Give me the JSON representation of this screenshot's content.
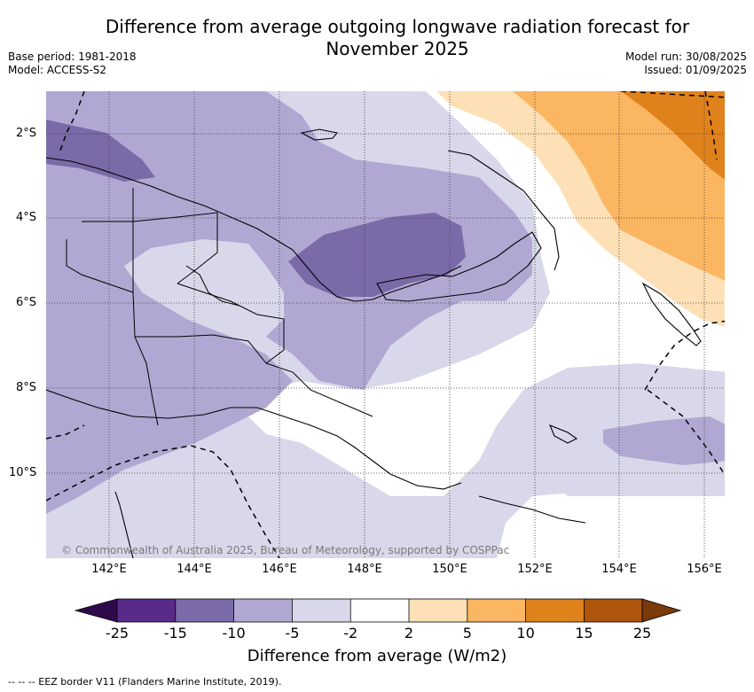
{
  "title_line1": "Difference from average outgoing longwave radiation forecast for",
  "title_line2": "November 2025",
  "base_period": "Base period: 1981-2018",
  "model": "Model: ACCESS-S2",
  "model_run": "Model run: 30/08/2025",
  "issued": "Issued: 01/09/2025",
  "lat_labels": [
    "2°S",
    "4°S",
    "6°S",
    "8°S",
    "10°S"
  ],
  "lon_labels": [
    "142°E",
    "144°E",
    "146°E",
    "148°E",
    "150°E",
    "152°E",
    "154°E",
    "156°E"
  ],
  "copyright": "© Commonwealth of Australia 2025, Bureau of Meteorology, supported by COSPPac",
  "colorbar": {
    "ticks": [
      "-25",
      "-15",
      "-10",
      "-5",
      "-2",
      "2",
      "5",
      "10",
      "15",
      "25"
    ],
    "colors": [
      "#2e0a4a",
      "#5a2a8a",
      "#7b6aa8",
      "#b0a8d2",
      "#d8d8ea",
      "#ffffff",
      "#fde0b5",
      "#fbb662",
      "#e0821c",
      "#b0550c",
      "#7a3a0a"
    ],
    "label": "Difference from average (W/m2)"
  },
  "footnote": "--  --  -- EEZ border V11 (Flanders Marine Institute, 2019)."
}
